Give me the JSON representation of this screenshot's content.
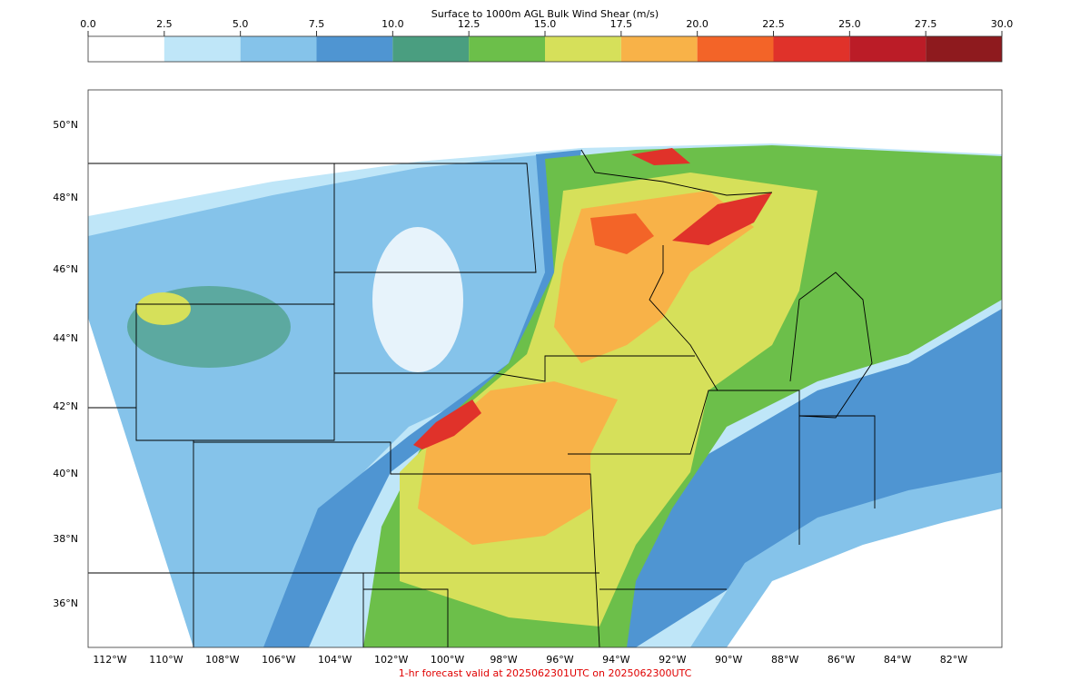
{
  "colorbar": {
    "title": "Surface to 1000m AGL Bulk Wind Shear (m/s)",
    "ticks": [
      {
        "value": 0,
        "label": "0.0"
      },
      {
        "value": 2.5,
        "label": "2.5"
      },
      {
        "value": 5,
        "label": "5.0"
      },
      {
        "value": 7.5,
        "label": "7.5"
      },
      {
        "value": 10,
        "label": "10.0"
      },
      {
        "value": 12.5,
        "label": "12.5"
      },
      {
        "value": 15,
        "label": "15.0"
      },
      {
        "value": 17.5,
        "label": "17.5"
      },
      {
        "value": 20,
        "label": "20.0"
      },
      {
        "value": 22.5,
        "label": "22.5"
      },
      {
        "value": 25,
        "label": "25.0"
      },
      {
        "value": 27.5,
        "label": "27.5"
      },
      {
        "value": 30,
        "label": "30.0"
      }
    ],
    "colors": [
      "#ffffff",
      "#bfe6f8",
      "#85c3ea",
      "#4f95d2",
      "#4a9e80",
      "#6cbf4a",
      "#d6e05a",
      "#f8b248",
      "#f36428",
      "#e0322a",
      "#bb1c27",
      "#8e1a1e"
    ]
  },
  "map": {
    "lat_labels": [
      "50°N",
      "48°N",
      "46°N",
      "44°N",
      "42°N",
      "40°N",
      "38°N",
      "36°N"
    ],
    "lon_labels": [
      "112°W",
      "110°W",
      "108°W",
      "106°W",
      "104°W",
      "102°W",
      "100°W",
      "98°W",
      "96°W",
      "94°W",
      "92°W",
      "90°W",
      "88°W",
      "86°W",
      "84°W",
      "82°W"
    ]
  },
  "footer": "1-hr forecast valid at 2025062301UTC on 2025062300UTC"
}
